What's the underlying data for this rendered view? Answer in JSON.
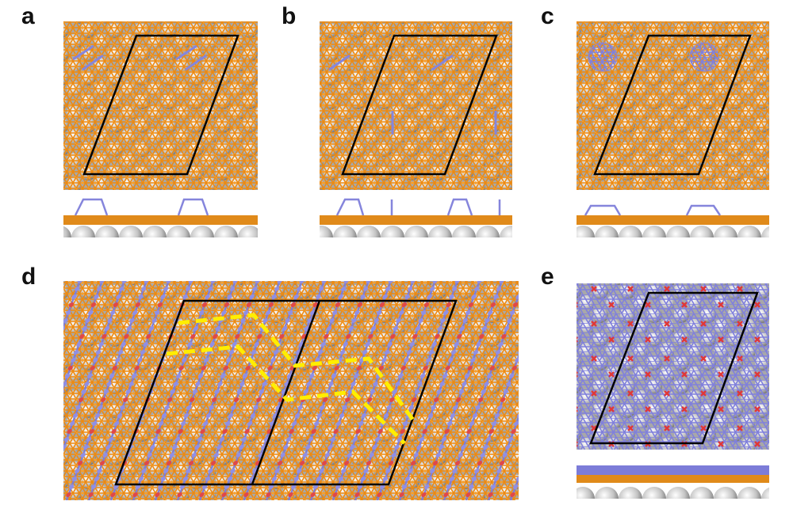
{
  "panels": [
    {
      "label": "a"
    },
    {
      "label": "b"
    },
    {
      "label": "c"
    },
    {
      "label": "d"
    },
    {
      "label": "e"
    }
  ],
  "colors": {
    "substrate": "#c8c8c8",
    "lattice": "#f0901a",
    "adsorbate": "#8f8fe0",
    "oxygen": "#e04040",
    "cell": "#000000",
    "path": "#ffee00"
  }
}
